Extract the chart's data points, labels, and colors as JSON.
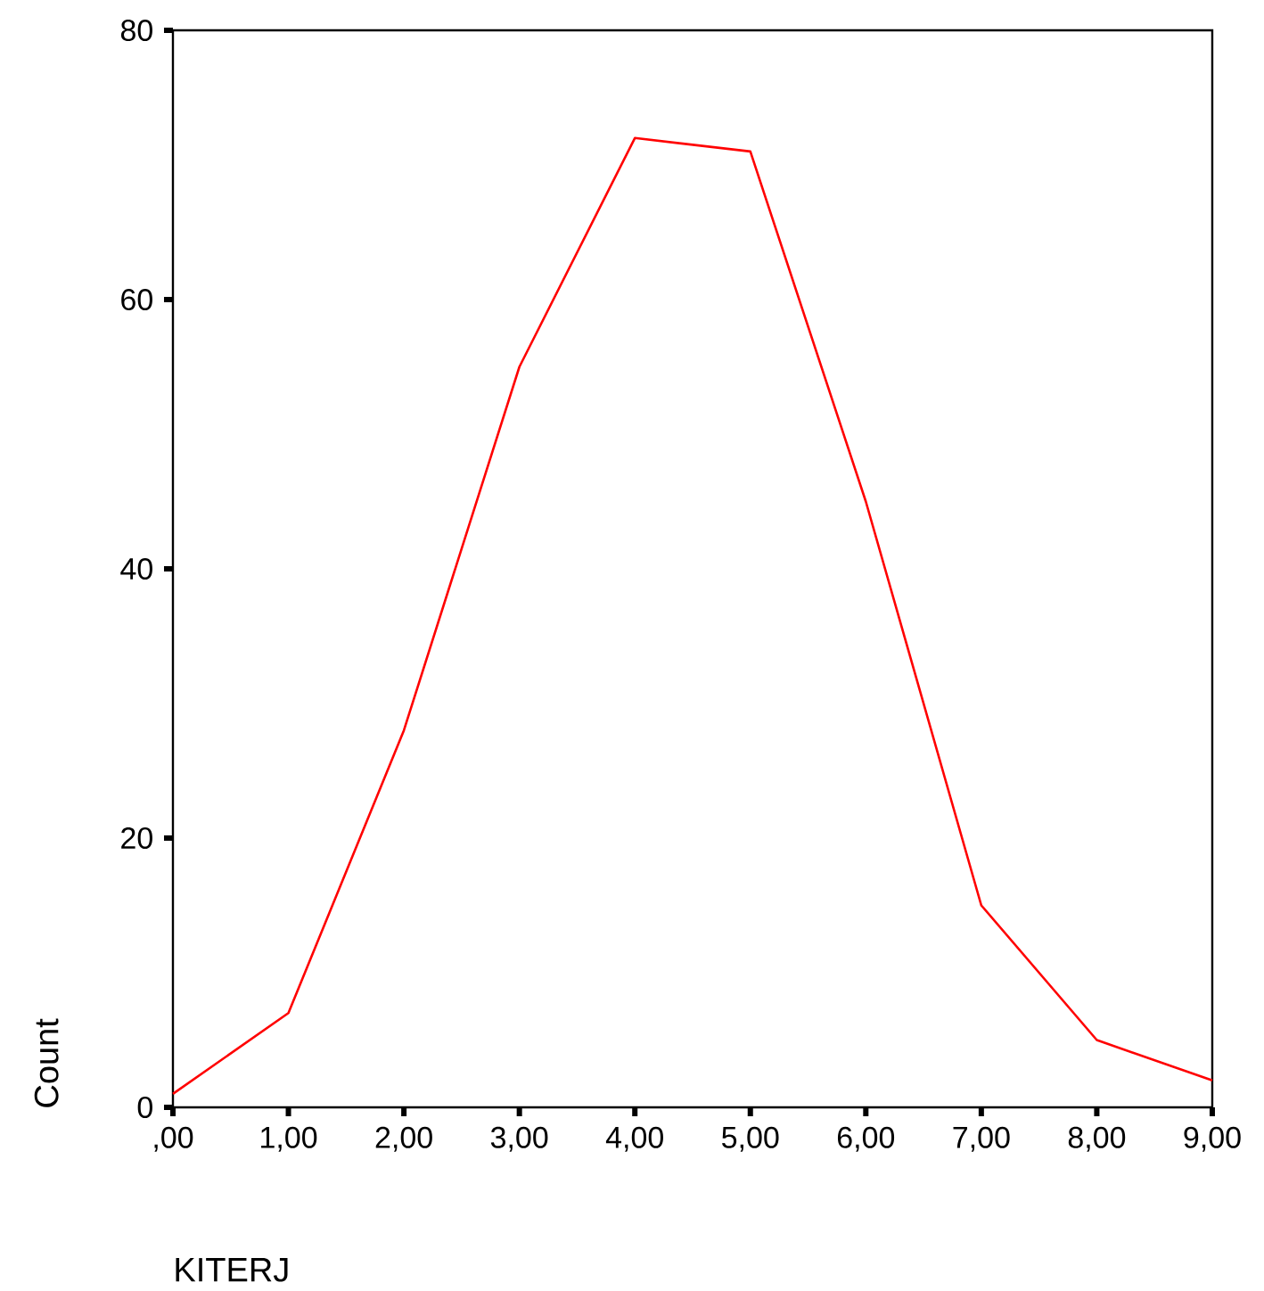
{
  "chart_data": {
    "type": "line",
    "xlabel": "KITERJ",
    "ylabel": "Count",
    "categories": [
      ",00",
      "1,00",
      "2,00",
      "3,00",
      "4,00",
      "5,00",
      "6,00",
      "7,00",
      "8,00",
      "9,00"
    ],
    "values": [
      1,
      7,
      28,
      55,
      72,
      71,
      45,
      15,
      5,
      2
    ],
    "color": "#ff0000",
    "ylim": [
      0,
      80
    ],
    "yticks": [
      0,
      20,
      40,
      60,
      80
    ]
  }
}
